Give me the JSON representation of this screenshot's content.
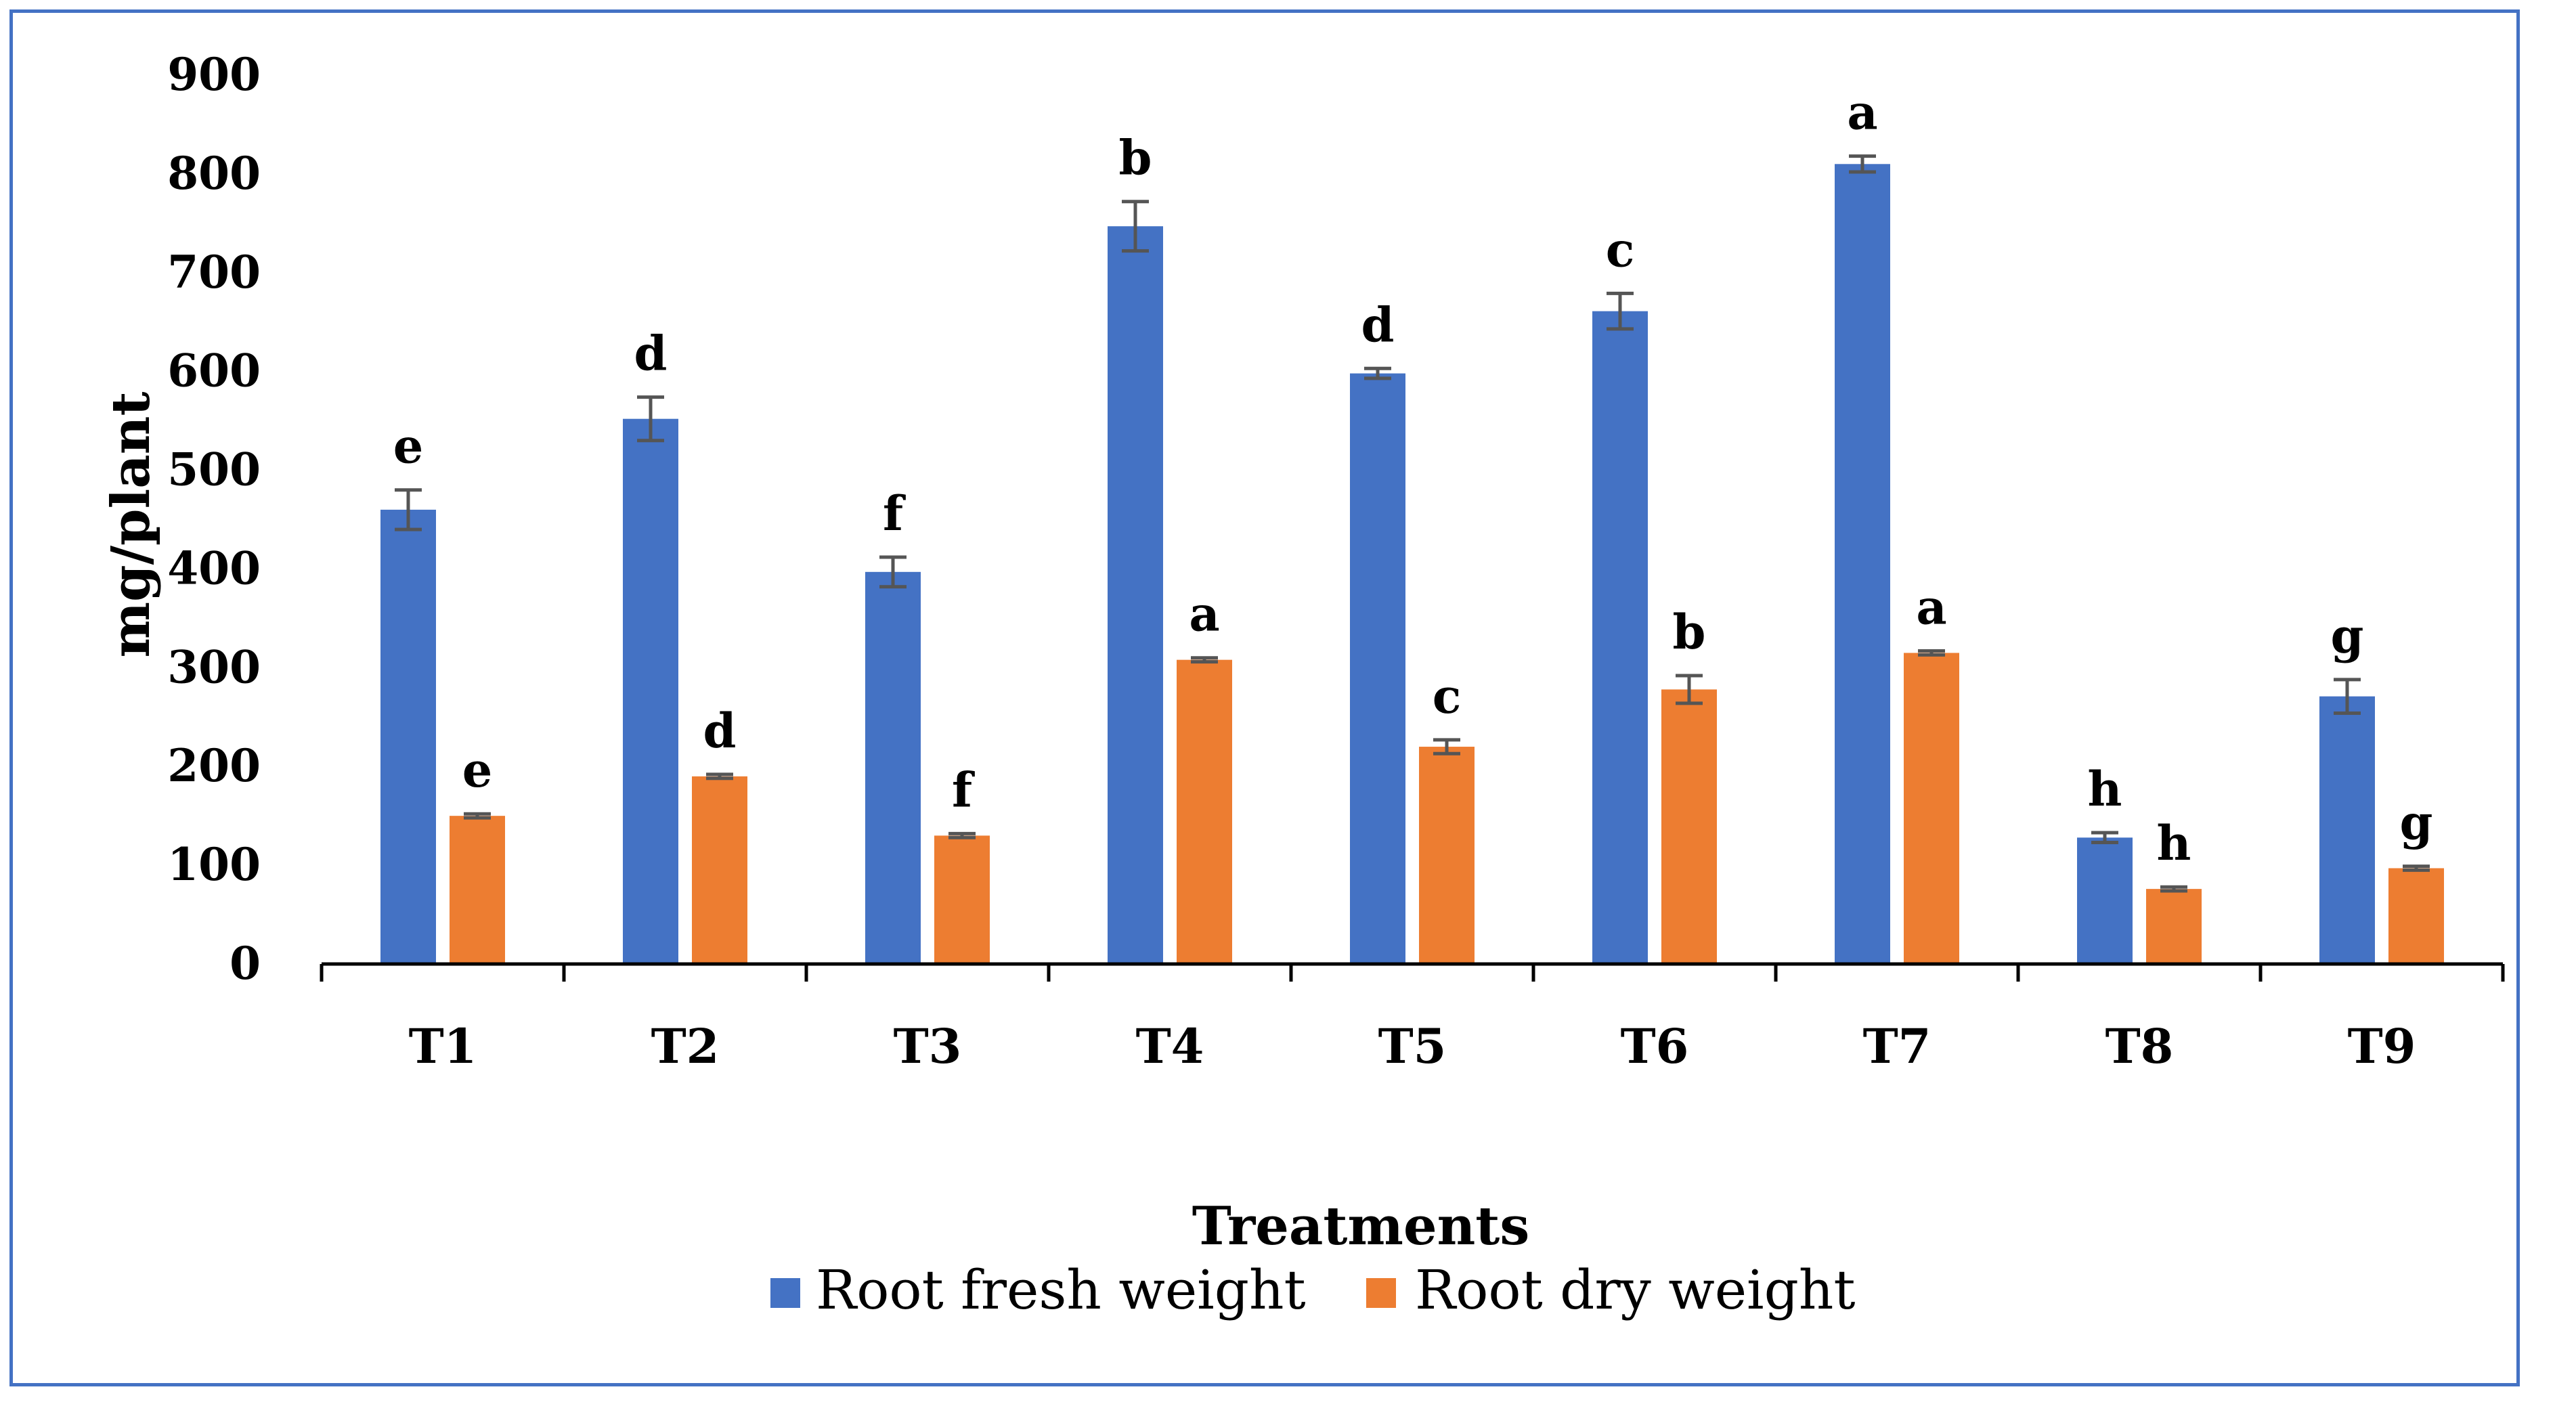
{
  "chart_data": {
    "type": "bar",
    "title": "",
    "xlabel": "Treatments",
    "ylabel": "mg/plant",
    "ylim": [
      0,
      900
    ],
    "yticks": [
      0,
      100,
      200,
      300,
      400,
      500,
      600,
      700,
      800,
      900
    ],
    "categories": [
      "T1",
      "T2",
      "T3",
      "T4",
      "T5",
      "T6",
      "T7",
      "T8",
      "T9"
    ],
    "series": [
      {
        "name": "Root fresh weight",
        "color": "#4472C4",
        "values": [
          460,
          552,
          397,
          747,
          598,
          661,
          810,
          128,
          271
        ],
        "errors": [
          20,
          22,
          15,
          25,
          5,
          18,
          8,
          5,
          17
        ],
        "letters": [
          "e",
          "d",
          "f",
          "b",
          "d",
          "c",
          "a",
          "h",
          "g"
        ]
      },
      {
        "name": "Root dry weight",
        "color": "#ED7D31",
        "values": [
          150,
          190,
          130,
          308,
          220,
          278,
          315,
          76,
          97
        ],
        "errors": [
          2,
          2,
          2,
          2,
          7,
          14,
          2,
          2,
          2
        ],
        "letters": [
          "e",
          "d",
          "f",
          "a",
          "c",
          "b",
          "a",
          "h",
          "g"
        ]
      }
    ],
    "legend": "bottom",
    "grid": false
  }
}
